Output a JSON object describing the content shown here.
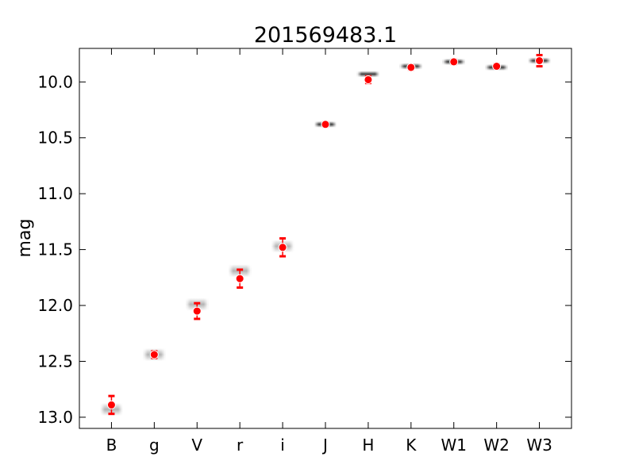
{
  "chart_data": {
    "type": "scatter",
    "title": "201569483.1",
    "xlabel": "",
    "ylabel": "mag",
    "categories": [
      "B",
      "g",
      "V",
      "r",
      "i",
      "J",
      "H",
      "K",
      "W1",
      "W2",
      "W3"
    ],
    "ylim": [
      13.1,
      9.7
    ],
    "y_inverted": true,
    "yticks": [
      "10.0",
      "10.5",
      "11.0",
      "11.5",
      "12.0",
      "12.5",
      "13.0"
    ],
    "grid": false,
    "series": [
      {
        "values": [
          12.89,
          12.44,
          12.05,
          11.76,
          11.48,
          10.38,
          9.98,
          9.87,
          9.82,
          9.86,
          9.81
        ],
        "errors": [
          0.08,
          0.03,
          0.07,
          0.08,
          0.08,
          0.02,
          0.03,
          0.02,
          0.02,
          0.02,
          0.05
        ],
        "color": "#ff0000"
      },
      {
        "values": [
          12.93,
          12.44,
          11.99,
          11.69,
          11.47,
          10.38,
          9.93,
          9.86,
          9.82,
          9.87,
          9.81
        ],
        "color": "#000000"
      }
    ]
  }
}
